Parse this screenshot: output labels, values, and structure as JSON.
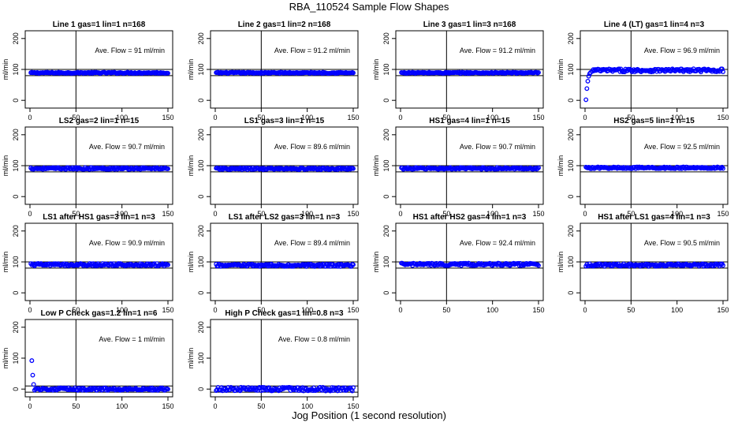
{
  "figure": {
    "title": "RBA_110524  Sample Flow Shapes",
    "xlabel": "Jog Position (1 second resolution)"
  },
  "chart_data": [
    {
      "type": "scatter",
      "title": "Line 1 gas=1 lin=1 n=168",
      "ylabel": "ml/min",
      "annotation": "Ave. Flow =  91  ml/min",
      "xlim": [
        0,
        150
      ],
      "ylim": [
        -25,
        225
      ],
      "xticks": [
        0,
        50,
        100,
        150
      ],
      "yticks": [
        0,
        100,
        200
      ],
      "hlines": [
        80,
        100
      ],
      "vline": 50,
      "series": [
        {
          "name": "flow",
          "shape": "flat",
          "level": 89,
          "spread": 2,
          "color": "#0000ff"
        }
      ]
    },
    {
      "type": "scatter",
      "title": "Line 2 gas=1 lin=2 n=168",
      "ylabel": "ml/min",
      "annotation": "Ave. Flow =  91.2  ml/min",
      "xlim": [
        0,
        150
      ],
      "ylim": [
        -25,
        225
      ],
      "xticks": [
        0,
        50,
        100,
        150
      ],
      "yticks": [
        0,
        100,
        200
      ],
      "hlines": [
        80,
        100
      ],
      "vline": 50,
      "series": [
        {
          "name": "flow",
          "shape": "flat",
          "level": 89,
          "spread": 2,
          "color": "#0000ff"
        }
      ]
    },
    {
      "type": "scatter",
      "title": "Line 3 gas=1 lin=3 n=168",
      "ylabel": "ml/min",
      "annotation": "Ave. Flow =  91.2  ml/min",
      "xlim": [
        0,
        150
      ],
      "ylim": [
        -25,
        225
      ],
      "xticks": [
        0,
        50,
        100,
        150
      ],
      "yticks": [
        0,
        100,
        200
      ],
      "hlines": [
        80,
        100
      ],
      "vline": 50,
      "series": [
        {
          "name": "flow",
          "shape": "flat",
          "level": 89,
          "spread": 2,
          "color": "#0000ff"
        }
      ]
    },
    {
      "type": "scatter",
      "title": "Line 4 (LT) gas=1 lin=4 n=3",
      "ylabel": "ml/min",
      "annotation": "Ave. Flow =  96.9  ml/min",
      "xlim": [
        0,
        150
      ],
      "ylim": [
        -25,
        225
      ],
      "xticks": [
        0,
        50,
        100,
        150
      ],
      "yticks": [
        0,
        100,
        200
      ],
      "hlines": [
        80,
        100
      ],
      "vline": 50,
      "series": [
        {
          "name": "flow",
          "shape": "rise",
          "level": 97,
          "spread": 5,
          "startup": [
            [
              1,
              2
            ],
            [
              2,
              38
            ],
            [
              3,
              62
            ],
            [
              4,
              78
            ],
            [
              5,
              86
            ],
            [
              6,
              90
            ],
            [
              8,
              94
            ]
          ],
          "color": "#0000ff"
        }
      ]
    },
    {
      "type": "scatter",
      "title": "LS2 gas=2 lin=1 n=15",
      "ylabel": "ml/min",
      "annotation": "Ave. Flow =  90.7  ml/min",
      "xlim": [
        0,
        150
      ],
      "ylim": [
        -25,
        225
      ],
      "xticks": [
        0,
        50,
        100,
        150
      ],
      "yticks": [
        0,
        100,
        200
      ],
      "hlines": [
        80,
        100
      ],
      "vline": 50,
      "series": [
        {
          "name": "flow",
          "shape": "flat",
          "level": 91,
          "spread": 3,
          "color": "#0000ff"
        }
      ]
    },
    {
      "type": "scatter",
      "title": "LS1 gas=3 lin=1 n=15",
      "ylabel": "ml/min",
      "annotation": "Ave. Flow =  89.6  ml/min",
      "xlim": [
        0,
        150
      ],
      "ylim": [
        -25,
        225
      ],
      "xticks": [
        0,
        50,
        100,
        150
      ],
      "yticks": [
        0,
        100,
        200
      ],
      "hlines": [
        80,
        100
      ],
      "vline": 50,
      "series": [
        {
          "name": "flow",
          "shape": "flat",
          "level": 90,
          "spread": 3,
          "color": "#0000ff"
        }
      ]
    },
    {
      "type": "scatter",
      "title": "HS1 gas=4 lin=1 n=15",
      "ylabel": "ml/min",
      "annotation": "Ave. Flow =  90.7  ml/min",
      "xlim": [
        0,
        150
      ],
      "ylim": [
        -25,
        225
      ],
      "xticks": [
        0,
        50,
        100,
        150
      ],
      "yticks": [
        0,
        100,
        200
      ],
      "hlines": [
        80,
        100
      ],
      "vline": 50,
      "series": [
        {
          "name": "flow",
          "shape": "flat",
          "level": 91,
          "spread": 3,
          "color": "#0000ff"
        }
      ]
    },
    {
      "type": "scatter",
      "title": "HS2 gas=5 lin=1 n=15",
      "ylabel": "ml/min",
      "annotation": "Ave. Flow =  92.5  ml/min",
      "xlim": [
        0,
        150
      ],
      "ylim": [
        -25,
        225
      ],
      "xticks": [
        0,
        50,
        100,
        150
      ],
      "yticks": [
        0,
        100,
        200
      ],
      "hlines": [
        80,
        100
      ],
      "vline": 50,
      "series": [
        {
          "name": "flow",
          "shape": "flat",
          "level": 93,
          "spread": 3,
          "color": "#0000ff"
        }
      ]
    },
    {
      "type": "scatter",
      "title": "LS1 after HS1 gas=3 lin=1 n=3",
      "ylabel": "ml/min",
      "annotation": "Ave. Flow =  90.9  ml/min",
      "xlim": [
        0,
        150
      ],
      "ylim": [
        -25,
        225
      ],
      "xticks": [
        0,
        50,
        100,
        150
      ],
      "yticks": [
        0,
        100,
        200
      ],
      "hlines": [
        80,
        100
      ],
      "vline": 50,
      "series": [
        {
          "name": "flow",
          "shape": "flat",
          "level": 91,
          "spread": 4,
          "color": "#0000ff"
        }
      ]
    },
    {
      "type": "scatter",
      "title": "LS1 after LS2 gas=3 lin=1 n=3",
      "ylabel": "ml/min",
      "annotation": "Ave. Flow =  89.4  ml/min",
      "xlim": [
        0,
        150
      ],
      "ylim": [
        -25,
        225
      ],
      "xticks": [
        0,
        50,
        100,
        150
      ],
      "yticks": [
        0,
        100,
        200
      ],
      "hlines": [
        80,
        100
      ],
      "vline": 50,
      "series": [
        {
          "name": "flow",
          "shape": "flat",
          "level": 89,
          "spread": 4,
          "color": "#0000ff"
        }
      ]
    },
    {
      "type": "scatter",
      "title": "HS1 after HS2 gas=4 lin=1 n=3",
      "ylabel": "ml/min",
      "annotation": "Ave. Flow =  92.4  ml/min",
      "xlim": [
        0,
        150
      ],
      "ylim": [
        -25,
        225
      ],
      "xticks": [
        0,
        50,
        100,
        150
      ],
      "yticks": [
        0,
        100,
        200
      ],
      "hlines": [
        80,
        100
      ],
      "vline": 50,
      "series": [
        {
          "name": "flow",
          "shape": "flat",
          "level": 92,
          "spread": 4,
          "color": "#0000ff"
        }
      ]
    },
    {
      "type": "scatter",
      "title": "HS1 after LS1 gas=4 lin=1 n=3",
      "ylabel": "ml/min",
      "annotation": "Ave. Flow =  90.5  ml/min",
      "xlim": [
        0,
        150
      ],
      "ylim": [
        -25,
        225
      ],
      "xticks": [
        0,
        50,
        100,
        150
      ],
      "yticks": [
        0,
        100,
        200
      ],
      "hlines": [
        80,
        100
      ],
      "vline": 50,
      "series": [
        {
          "name": "flow",
          "shape": "flat",
          "level": 90,
          "spread": 4,
          "color": "#0000ff"
        }
      ]
    },
    {
      "type": "scatter",
      "title": "Low P Check gas=1.2 lin=1 n=6",
      "ylabel": "ml/min",
      "annotation": "Ave. Flow =  1  ml/min",
      "xlim": [
        0,
        150
      ],
      "ylim": [
        -25,
        225
      ],
      "xticks": [
        0,
        50,
        100,
        150
      ],
      "yticks": [
        0,
        100,
        200
      ],
      "hlines": [
        -10,
        10
      ],
      "vline": 50,
      "series": [
        {
          "name": "flow",
          "shape": "flat",
          "level": 0,
          "spread": 4,
          "startup": [
            [
              2,
              92
            ],
            [
              3,
              45
            ],
            [
              4,
              15
            ]
          ],
          "color": "#0000ff"
        }
      ]
    },
    {
      "type": "scatter",
      "title": "High P Check gas=1 lin=0.8 n=3",
      "ylabel": "ml/min",
      "annotation": "Ave. Flow =  0.8  ml/min",
      "xlim": [
        0,
        150
      ],
      "ylim": [
        -25,
        225
      ],
      "xticks": [
        0,
        50,
        100,
        150
      ],
      "yticks": [
        0,
        100,
        200
      ],
      "hlines": [
        -10,
        10
      ],
      "vline": 50,
      "series": [
        {
          "name": "flow",
          "shape": "flat",
          "level": 0,
          "spread": 6,
          "color": "#0000ff"
        }
      ]
    }
  ]
}
